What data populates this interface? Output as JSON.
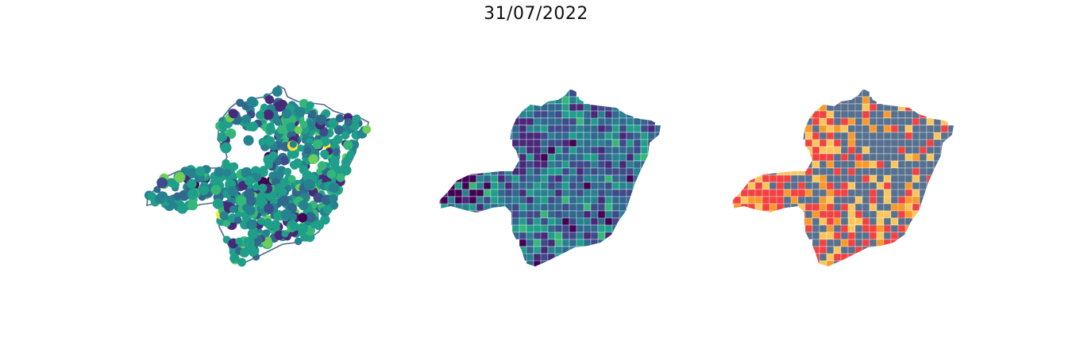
{
  "title": "31/07/2022",
  "colors": {
    "outline": "#4e6a8c",
    "borders": "#ffffff",
    "viridis": [
      "#440154",
      "#482878",
      "#3e4a89",
      "#31688e",
      "#26828e",
      "#1f9e89",
      "#35b779",
      "#6ece58",
      "#b5de2b",
      "#fde725"
    ],
    "category_slate": "#56708e",
    "category_red": "#f24141",
    "category_orange": "#f7992b",
    "category_yellow": "#fac65a"
  },
  "panels": [
    {
      "name": "point-map",
      "style": "scattered circles coloured on a viridis scale over the state outline"
    },
    {
      "name": "choropleth-continuous",
      "style": "municipalities filled on a viridis scale"
    },
    {
      "name": "choropleth-categorical",
      "style": "municipalities filled in four categories"
    }
  ]
}
